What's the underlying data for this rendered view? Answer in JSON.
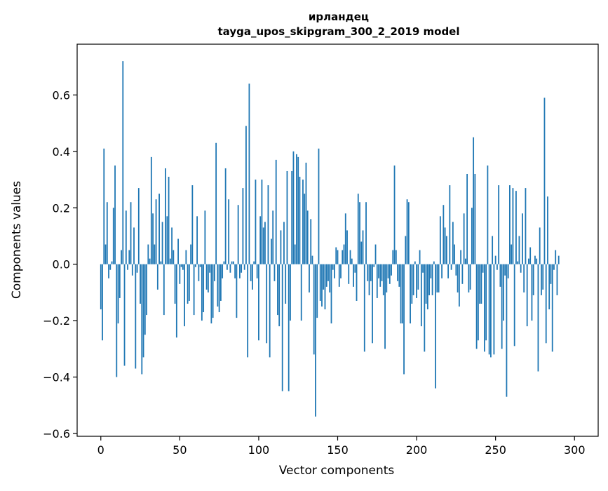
{
  "chart_data": {
    "type": "bar",
    "title": "ирландец",
    "subtitle": "tayga_upos_skipgram_300_2_2019 model",
    "xlabel": "Vector components",
    "ylabel": "Components values",
    "xlim": [
      -15,
      315
    ],
    "ylim": [
      -0.61,
      0.78
    ],
    "xticks": [
      0,
      50,
      100,
      150,
      200,
      250,
      300
    ],
    "yticks": [
      -0.6,
      -0.4,
      -0.2,
      0.0,
      0.2,
      0.4,
      0.6
    ],
    "ytick_labels": [
      "−0.6",
      "−0.4",
      "−0.2",
      "0.0",
      "0.2",
      "0.4",
      "0.6"
    ],
    "grid": false,
    "bar_color": "#1f77b4",
    "values": [
      -0.16,
      -0.27,
      0.41,
      0.07,
      0.22,
      -0.05,
      -0.02,
      0.01,
      0.2,
      0.35,
      -0.4,
      -0.21,
      -0.12,
      0.05,
      0.72,
      -0.36,
      0.19,
      -0.02,
      0.05,
      0.22,
      -0.04,
      0.13,
      -0.37,
      -0.03,
      0.27,
      -0.14,
      -0.39,
      -0.33,
      -0.25,
      -0.18,
      0.07,
      0.02,
      0.38,
      0.18,
      0.07,
      0.23,
      -0.09,
      0.25,
      0.01,
      0.15,
      -0.18,
      0.34,
      0.17,
      0.31,
      0.02,
      0.13,
      0.05,
      -0.14,
      -0.26,
      0.09,
      -0.07,
      -0.01,
      -0.02,
      -0.22,
      0.05,
      -0.14,
      -0.13,
      0.07,
      0.28,
      -0.18,
      -0.01,
      0.17,
      -0.06,
      -0.01,
      -0.2,
      -0.17,
      0.19,
      -0.09,
      -0.1,
      -0.03,
      -0.21,
      -0.19,
      -0.06,
      0.43,
      -0.15,
      -0.17,
      -0.13,
      -0.05,
      0.01,
      0.34,
      -0.02,
      0.23,
      -0.03,
      0.01,
      0.01,
      -0.05,
      -0.19,
      0.21,
      -0.05,
      -0.03,
      0.27,
      -0.02,
      0.49,
      -0.33,
      0.64,
      -0.06,
      -0.09,
      0.01,
      0.3,
      -0.05,
      -0.27,
      0.17,
      0.3,
      0.13,
      0.15,
      -0.28,
      0.28,
      -0.33,
      0.09,
      0.19,
      -0.06,
      0.37,
      -0.18,
      -0.22,
      0.12,
      -0.45,
      0.15,
      -0.14,
      0.33,
      -0.45,
      -0.2,
      0.33,
      0.4,
      0.07,
      0.39,
      0.38,
      0.31,
      -0.2,
      0.3,
      0.25,
      0.36,
      0.19,
      -0.1,
      0.16,
      0.03,
      -0.32,
      -0.54,
      -0.19,
      0.41,
      -0.13,
      -0.15,
      -0.09,
      -0.16,
      -0.08,
      -0.06,
      -0.1,
      -0.21,
      -0.02,
      -0.05,
      0.06,
      0.05,
      -0.08,
      -0.05,
      0.05,
      0.07,
      0.18,
      0.12,
      -0.07,
      0.05,
      0.02,
      -0.08,
      -0.03,
      -0.13,
      0.25,
      0.22,
      0.08,
      0.12,
      -0.31,
      0.22,
      -0.06,
      -0.11,
      -0.06,
      -0.28,
      -0.01,
      0.07,
      -0.12,
      -0.05,
      -0.08,
      -0.06,
      -0.11,
      -0.3,
      -0.1,
      -0.05,
      -0.07,
      -0.04,
      0.05,
      0.35,
      0.05,
      -0.06,
      -0.08,
      -0.21,
      -0.21,
      -0.39,
      0.1,
      0.23,
      0.22,
      -0.21,
      -0.14,
      -0.11,
      0.01,
      -0.12,
      -0.09,
      0.05,
      -0.22,
      -0.03,
      -0.31,
      -0.14,
      -0.16,
      -0.11,
      -0.05,
      -0.11,
      0.01,
      -0.44,
      -0.1,
      -0.1,
      0.17,
      -0.05,
      0.21,
      0.13,
      0.1,
      -0.05,
      0.28,
      -0.02,
      0.15,
      0.07,
      -0.04,
      -0.1,
      -0.15,
      0.05,
      -0.07,
      0.18,
      0.02,
      0.32,
      -0.1,
      -0.09,
      0.2,
      0.45,
      0.32,
      -0.3,
      -0.27,
      -0.14,
      -0.14,
      -0.03,
      -0.31,
      -0.27,
      0.35,
      -0.32,
      -0.33,
      0.1,
      -0.32,
      0.03,
      -0.02,
      0.28,
      -0.08,
      -0.3,
      -0.2,
      -0.04,
      -0.47,
      -0.05,
      0.28,
      0.07,
      0.27,
      -0.29,
      0.26,
      0.01,
      0.1,
      -0.03,
      0.18,
      -0.1,
      0.27,
      -0.22,
      0.02,
      0.06,
      -0.2,
      -0.11,
      0.03,
      0.02,
      -0.38,
      0.13,
      -0.11,
      -0.09,
      0.59,
      -0.28,
      0.24,
      -0.16,
      -0.07,
      -0.31,
      -0.02,
      0.05,
      -0.11,
      0.03
    ]
  }
}
